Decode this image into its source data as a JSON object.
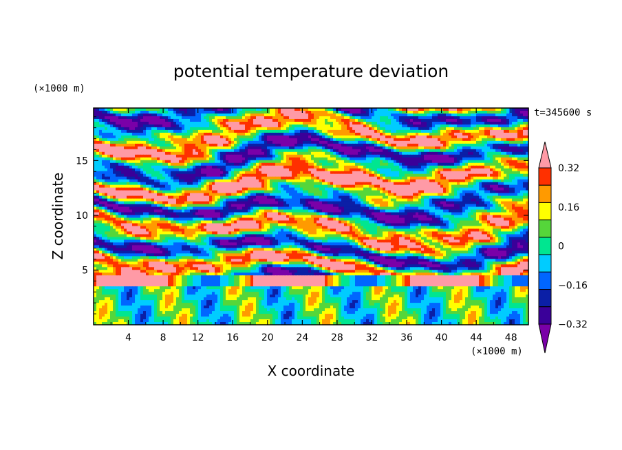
{
  "chart_data": {
    "type": "heatmap",
    "title": "potential temperature deviation",
    "xlabel": "X coordinate",
    "ylabel": "Z coordinate",
    "x_unit": "(×1000 m)",
    "y_unit": "(×1000 m)",
    "time_label": "t=345600 s",
    "xlim": [
      0,
      50
    ],
    "ylim": [
      0,
      19.8
    ],
    "x_ticks": [
      "4",
      "8",
      "12",
      "16",
      "20",
      "24",
      "28",
      "32",
      "36",
      "40",
      "44",
      "48"
    ],
    "y_ticks": [
      "5",
      "10",
      "15"
    ],
    "colorbar": {
      "levels": [
        -0.4,
        -0.32,
        -0.24,
        -0.16,
        -0.08,
        0,
        0.08,
        0.16,
        0.24,
        0.32,
        0.4
      ],
      "tick_labels": [
        "0.32",
        "0.16",
        "0",
        "−0.16",
        "−0.32"
      ],
      "colors": [
        "#7a00a8",
        "#3a0099",
        "#0b1fa6",
        "#0066ff",
        "#00ccff",
        "#00e690",
        "#55d63a",
        "#ffff00",
        "#ff9a00",
        "#ff3000",
        "#ff9aa6"
      ],
      "extend": "both"
    }
  }
}
